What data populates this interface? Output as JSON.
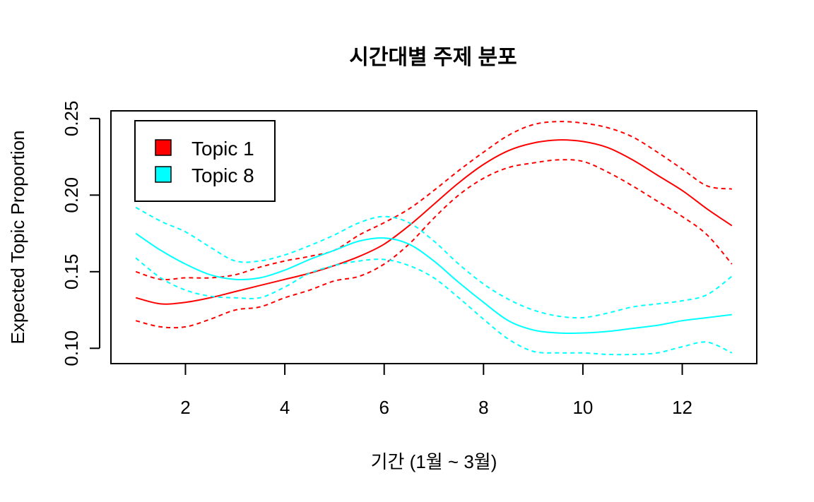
{
  "chart_data": {
    "type": "line",
    "title": "시간대별 주제 분포",
    "xlabel": "기간 (1월 ~ 3월)",
    "ylabel": "Expected Topic Proportion",
    "xlim": [
      0.5,
      13.5
    ],
    "ylim": [
      0.09,
      0.255
    ],
    "xticks": [
      2,
      4,
      6,
      8,
      10,
      12
    ],
    "yticks": [
      0.1,
      0.15,
      0.2,
      0.25
    ],
    "xtick_labels": [
      "2",
      "4",
      "6",
      "8",
      "10",
      "12"
    ],
    "ytick_labels": [
      "0.10",
      "0.15",
      "0.20",
      "0.25"
    ],
    "legend": {
      "position": "top-left",
      "entries": [
        {
          "label": "Topic 1",
          "color": "#ff0000"
        },
        {
          "label": "Topic 8",
          "color": "#00ffff"
        }
      ]
    },
    "x": [
      1,
      1.5,
      2,
      2.5,
      3,
      3.5,
      4,
      4.5,
      5,
      5.5,
      6,
      6.5,
      7,
      7.5,
      8,
      8.5,
      9,
      9.5,
      10,
      10.5,
      11,
      11.5,
      12,
      12.5,
      13
    ],
    "series": [
      {
        "name": "Topic 1",
        "color": "#ff0000",
        "style": "solid",
        "values": [
          0.133,
          0.129,
          0.13,
          0.133,
          0.137,
          0.141,
          0.145,
          0.149,
          0.154,
          0.16,
          0.168,
          0.18,
          0.194,
          0.208,
          0.22,
          0.229,
          0.234,
          0.236,
          0.235,
          0.231,
          0.223,
          0.213,
          0.203,
          0.191,
          0.18
        ]
      },
      {
        "name": "Topic 1 upper",
        "color": "#ff0000",
        "style": "dashed",
        "values": [
          0.15,
          0.145,
          0.146,
          0.146,
          0.148,
          0.153,
          0.157,
          0.16,
          0.164,
          0.174,
          0.182,
          0.191,
          0.203,
          0.216,
          0.228,
          0.239,
          0.246,
          0.248,
          0.247,
          0.244,
          0.238,
          0.228,
          0.217,
          0.206,
          0.204
        ]
      },
      {
        "name": "Topic 1 lower",
        "color": "#ff0000",
        "style": "dashed",
        "values": [
          0.118,
          0.114,
          0.114,
          0.119,
          0.125,
          0.127,
          0.133,
          0.138,
          0.144,
          0.147,
          0.155,
          0.168,
          0.185,
          0.2,
          0.211,
          0.218,
          0.221,
          0.223,
          0.222,
          0.215,
          0.206,
          0.196,
          0.186,
          0.174,
          0.155
        ]
      },
      {
        "name": "Topic 8",
        "color": "#00ffff",
        "style": "solid",
        "values": [
          0.175,
          0.164,
          0.155,
          0.148,
          0.145,
          0.146,
          0.151,
          0.158,
          0.164,
          0.17,
          0.172,
          0.168,
          0.157,
          0.143,
          0.13,
          0.118,
          0.112,
          0.11,
          0.11,
          0.111,
          0.113,
          0.115,
          0.118,
          0.12,
          0.122
        ]
      },
      {
        "name": "Topic 8 upper",
        "color": "#00ffff",
        "style": "dashed",
        "values": [
          0.192,
          0.183,
          0.176,
          0.166,
          0.157,
          0.157,
          0.161,
          0.167,
          0.174,
          0.182,
          0.186,
          0.182,
          0.17,
          0.155,
          0.142,
          0.132,
          0.125,
          0.121,
          0.12,
          0.123,
          0.127,
          0.129,
          0.131,
          0.135,
          0.147
        ]
      },
      {
        "name": "Topic 8 lower",
        "color": "#00ffff",
        "style": "dashed",
        "values": [
          0.159,
          0.146,
          0.138,
          0.134,
          0.133,
          0.133,
          0.14,
          0.149,
          0.154,
          0.157,
          0.158,
          0.154,
          0.146,
          0.133,
          0.119,
          0.106,
          0.098,
          0.097,
          0.097,
          0.096,
          0.096,
          0.097,
          0.101,
          0.104,
          0.097
        ]
      }
    ]
  }
}
